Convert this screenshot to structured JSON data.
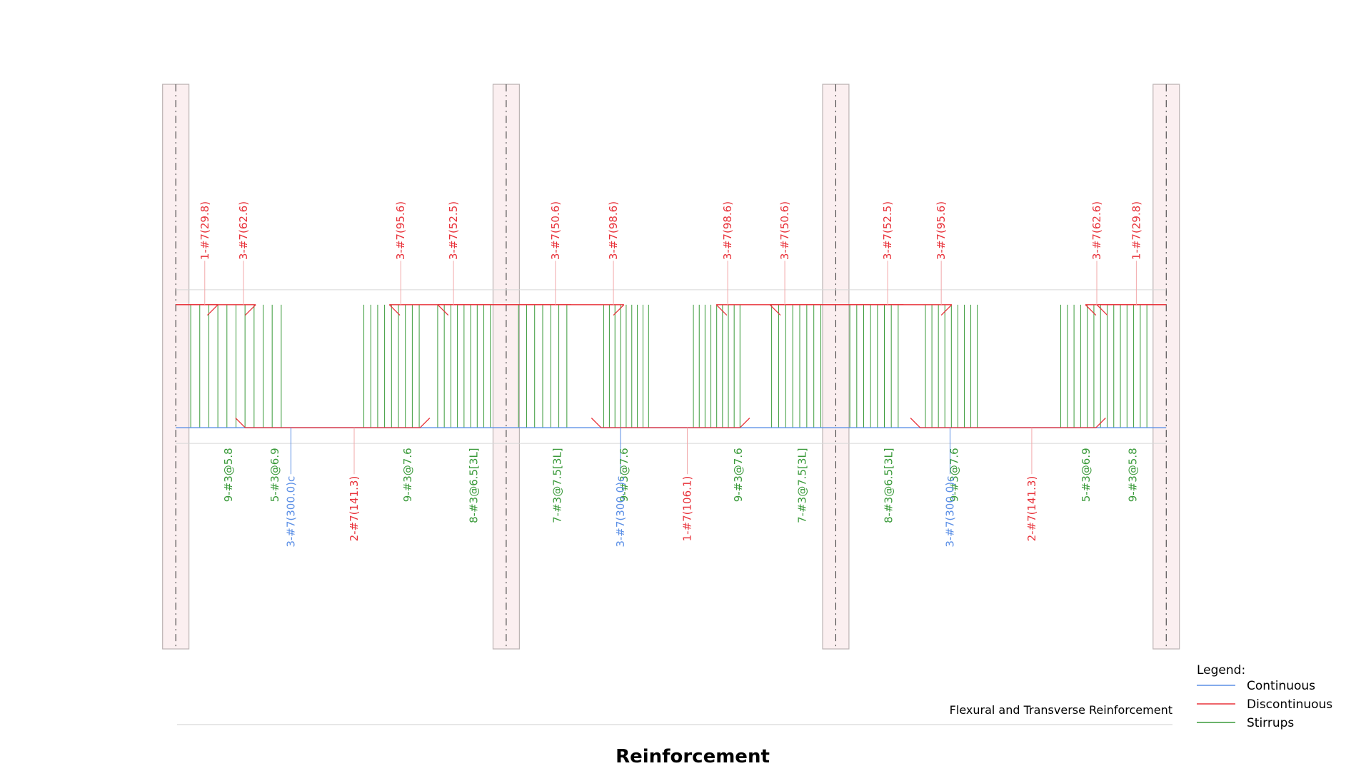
{
  "colors": {
    "continuous": "#5b8fe6",
    "discontinuous": "#e8323a",
    "stirrups": "#3a9a3a",
    "support_fill": "#fbeff0",
    "support_edge": "#bcb4b4"
  },
  "top_bar_labels": [
    "1-#7(29.8)",
    "3-#7(62.6)",
    "3-#7(95.6)",
    "3-#7(52.5)",
    "3-#7(50.6)",
    "3-#7(98.6)",
    "3-#7(98.6)",
    "3-#7(50.6)",
    "3-#7(52.5)",
    "3-#7(95.6)",
    "3-#7(62.6)",
    "1-#7(29.8)"
  ],
  "stirrup_labels": [
    "9-#3@5.8",
    "5-#3@6.9",
    "9-#3@7.6",
    "8-#3@6.5[3L]",
    "7-#3@7.5[3L]",
    "9-#3@7.6",
    "9-#3@7.6",
    "7-#3@7.5[3L]",
    "8-#3@6.5[3L]",
    "9-#3@7.6",
    "5-#3@6.9",
    "9-#3@5.8"
  ],
  "continuous_labels": [
    "3-#7(300.0)c",
    "3-#7(300.0)c",
    "3-#7(300.0)c"
  ],
  "bottom_bar_labels": [
    "2-#7(141.3)",
    "1-#7(106.1)",
    "2-#7(141.3)"
  ],
  "legend": {
    "title": "Legend:",
    "items": [
      {
        "label": "Continuous",
        "color": "#5b8fe6"
      },
      {
        "label": "Discontinuous",
        "color": "#e8323a"
      },
      {
        "label": "Stirrups",
        "color": "#3a9a3a"
      }
    ]
  },
  "caption": "Flexural and Transverse Reinforcement",
  "title": "Reinforcement"
}
